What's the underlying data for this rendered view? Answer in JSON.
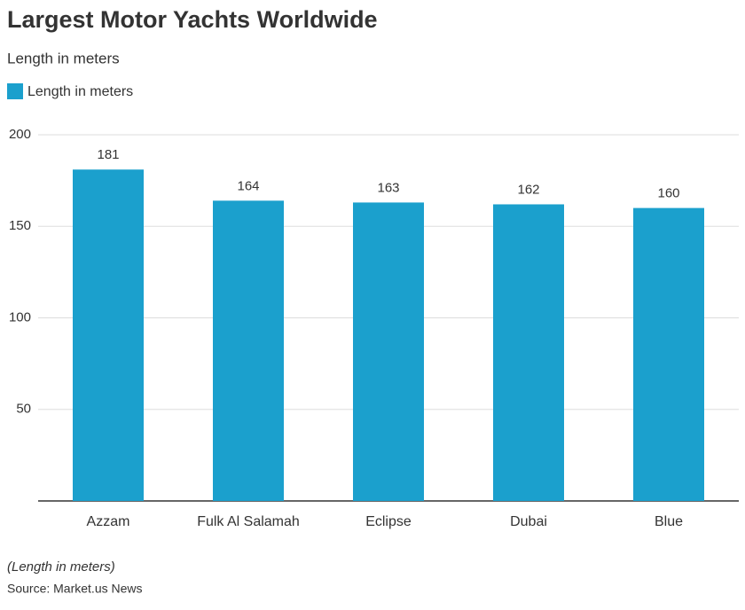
{
  "chart_data": {
    "type": "bar",
    "title": "Largest Motor Yachts Worldwide",
    "subtitle": "Length in meters",
    "categories": [
      "Azzam",
      "Fulk Al Salamah",
      "Eclipse",
      "Dubai",
      "Blue"
    ],
    "series": [
      {
        "name": "Length in meters",
        "color": "#1ba0cd",
        "values": [
          181,
          164,
          163,
          162,
          160
        ]
      }
    ],
    "ylim": [
      0,
      200
    ],
    "yticks": [
      50,
      100,
      150,
      200
    ],
    "grid": true,
    "note": "(Length in meters)",
    "source": "Source: Market.us News"
  }
}
